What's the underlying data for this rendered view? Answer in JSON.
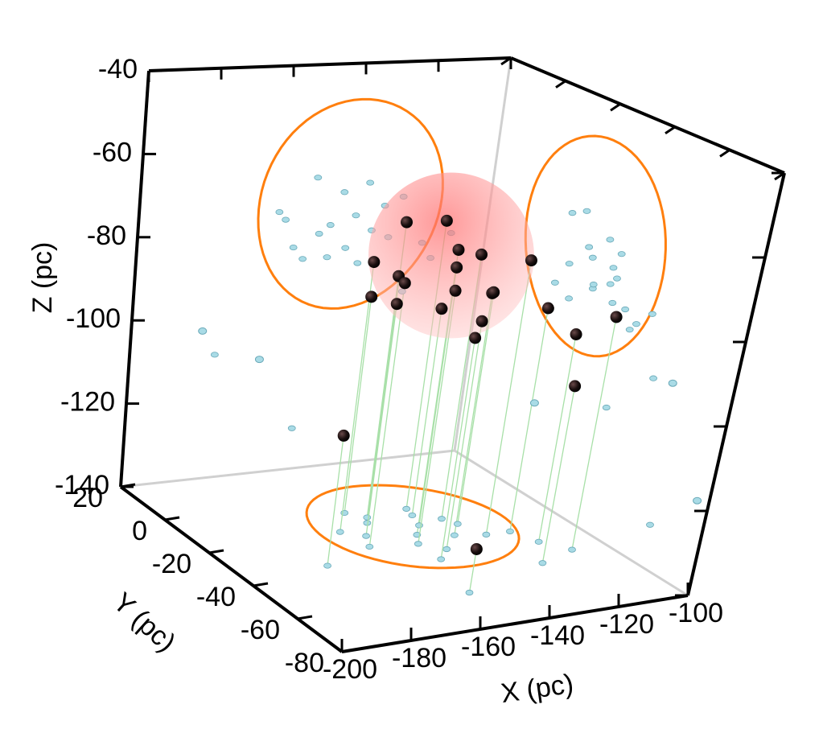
{
  "chart_data": {
    "type": "scatter3d",
    "xlabel": "X  (pc)",
    "ylabel": "Y  (pc)",
    "zlabel": "Z  (pc)",
    "xlim": [
      -200,
      -100
    ],
    "ylim": [
      -80,
      20
    ],
    "zlim": [
      -140,
      -40
    ],
    "xticks": [
      -200,
      -180,
      -160,
      -140,
      -120,
      -100
    ],
    "yticks": [
      -80,
      -60,
      -40,
      -20,
      0,
      20
    ],
    "zticks": [
      -140,
      -120,
      -100,
      -80,
      -60,
      -40
    ],
    "series": [
      {
        "color": "#1a0f0f",
        "x": [
          -150,
          -142,
          -135,
          -138,
          -145,
          -130,
          -133,
          -148,
          -155,
          -140,
          -128,
          -152,
          -160,
          -158,
          -136,
          -125,
          -145,
          -118,
          -115,
          -122,
          -175,
          -150,
          -110
        ],
        "y": [
          -15,
          -25,
          -10,
          -20,
          -30,
          -18,
          -28,
          -12,
          -22,
          -35,
          -22,
          -8,
          -18,
          -28,
          -14,
          -30,
          -40,
          -30,
          -38,
          -50,
          -35,
          -60,
          -45
        ],
        "z": [
          -68,
          -72,
          -70,
          -78,
          -80,
          -76,
          -82,
          -82,
          -85,
          -86,
          -84,
          -88,
          -76,
          -78,
          -90,
          -74,
          -88,
          -86,
          -90,
          -98,
          -110,
          -130,
          -84
        ]
      },
      {
        "color": "#a9dbe6",
        "x": [
          -190,
          -180,
          -110,
          -102,
          -125
        ],
        "y": [
          5,
          -5,
          -70,
          -78,
          -40
        ],
        "z": [
          -98,
          -102,
          -92,
          -118,
          -105
        ]
      }
    ],
    "cluster": {
      "center": [
        -140,
        -20,
        -75
      ],
      "radius": 20,
      "color": "#ff9c9c"
    },
    "projection_radius": 26,
    "projection_color": "#ff7f0e",
    "projection_point_color": "#a9dbe6",
    "dropline_color": "#a8e0a8"
  }
}
